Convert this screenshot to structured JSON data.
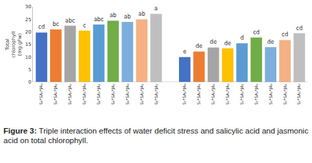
{
  "chart_data": {
    "type": "bar",
    "ylabel": "Total\nchlorophyll\n(mg.gFw)",
    "categories": [
      "S₀*SA₀*JA₀",
      "S₀*SA₀*JA₁",
      "S₀*SA₀*JA₂",
      "S₀*SA₁*JA₀",
      "S₀*SA₁*JA₁",
      "S₀*SA₁*JA₂",
      "S₀*SA₂*JA₀",
      "S₀*SA₂*JA₁",
      "S₀*SA₂*JA₂",
      null,
      "S₁*SA₀*JA₀",
      "S₁*SA₀*JA₁",
      "S₁*SA₀*JA₂",
      "S₁*SA₁*JA₀",
      "S₁*SA₁*JA₁",
      "S₁*SA₁*JA₂",
      "S₁*SA₂*JA₀",
      "S₁*SA₂*JA₁",
      "S₁*SA₂*JA₂"
    ],
    "values": [
      19.8,
      21.0,
      22.5,
      20.5,
      23.0,
      24.5,
      24.0,
      25.0,
      27.2,
      null,
      10.0,
      12.2,
      13.8,
      13.5,
      15.5,
      17.8,
      14.0,
      16.8,
      19.5
    ],
    "letters": [
      "cd",
      "bc",
      "abc",
      "c",
      "abc",
      "ab",
      "ab",
      "ab",
      "a",
      null,
      "e",
      "de",
      "de",
      "de",
      "d",
      "cd",
      "de",
      "cd",
      "cd"
    ],
    "colors": [
      "#4472c4",
      "#ed7d31",
      "#a5a5a5",
      "#ffc000",
      "#5b9bd5",
      "#70ad47",
      "#7cafdd",
      "#f4b183",
      "#bfbfbf",
      null,
      "#4472c4",
      "#ed7d31",
      "#a5a5a5",
      "#ffc000",
      "#5b9bd5",
      "#70ad47",
      "#7cafdd",
      "#f4b183",
      "#bfbfbf"
    ],
    "ylim": [
      0,
      30
    ],
    "yticks": [
      0,
      5,
      10,
      15,
      20,
      25,
      30
    ],
    "grid": false,
    "caption_label": "Figure 3:",
    "caption": "Triple interaction effects of water deficit stress and salicylic acid and jasmonic acid on total chlorophyll."
  }
}
